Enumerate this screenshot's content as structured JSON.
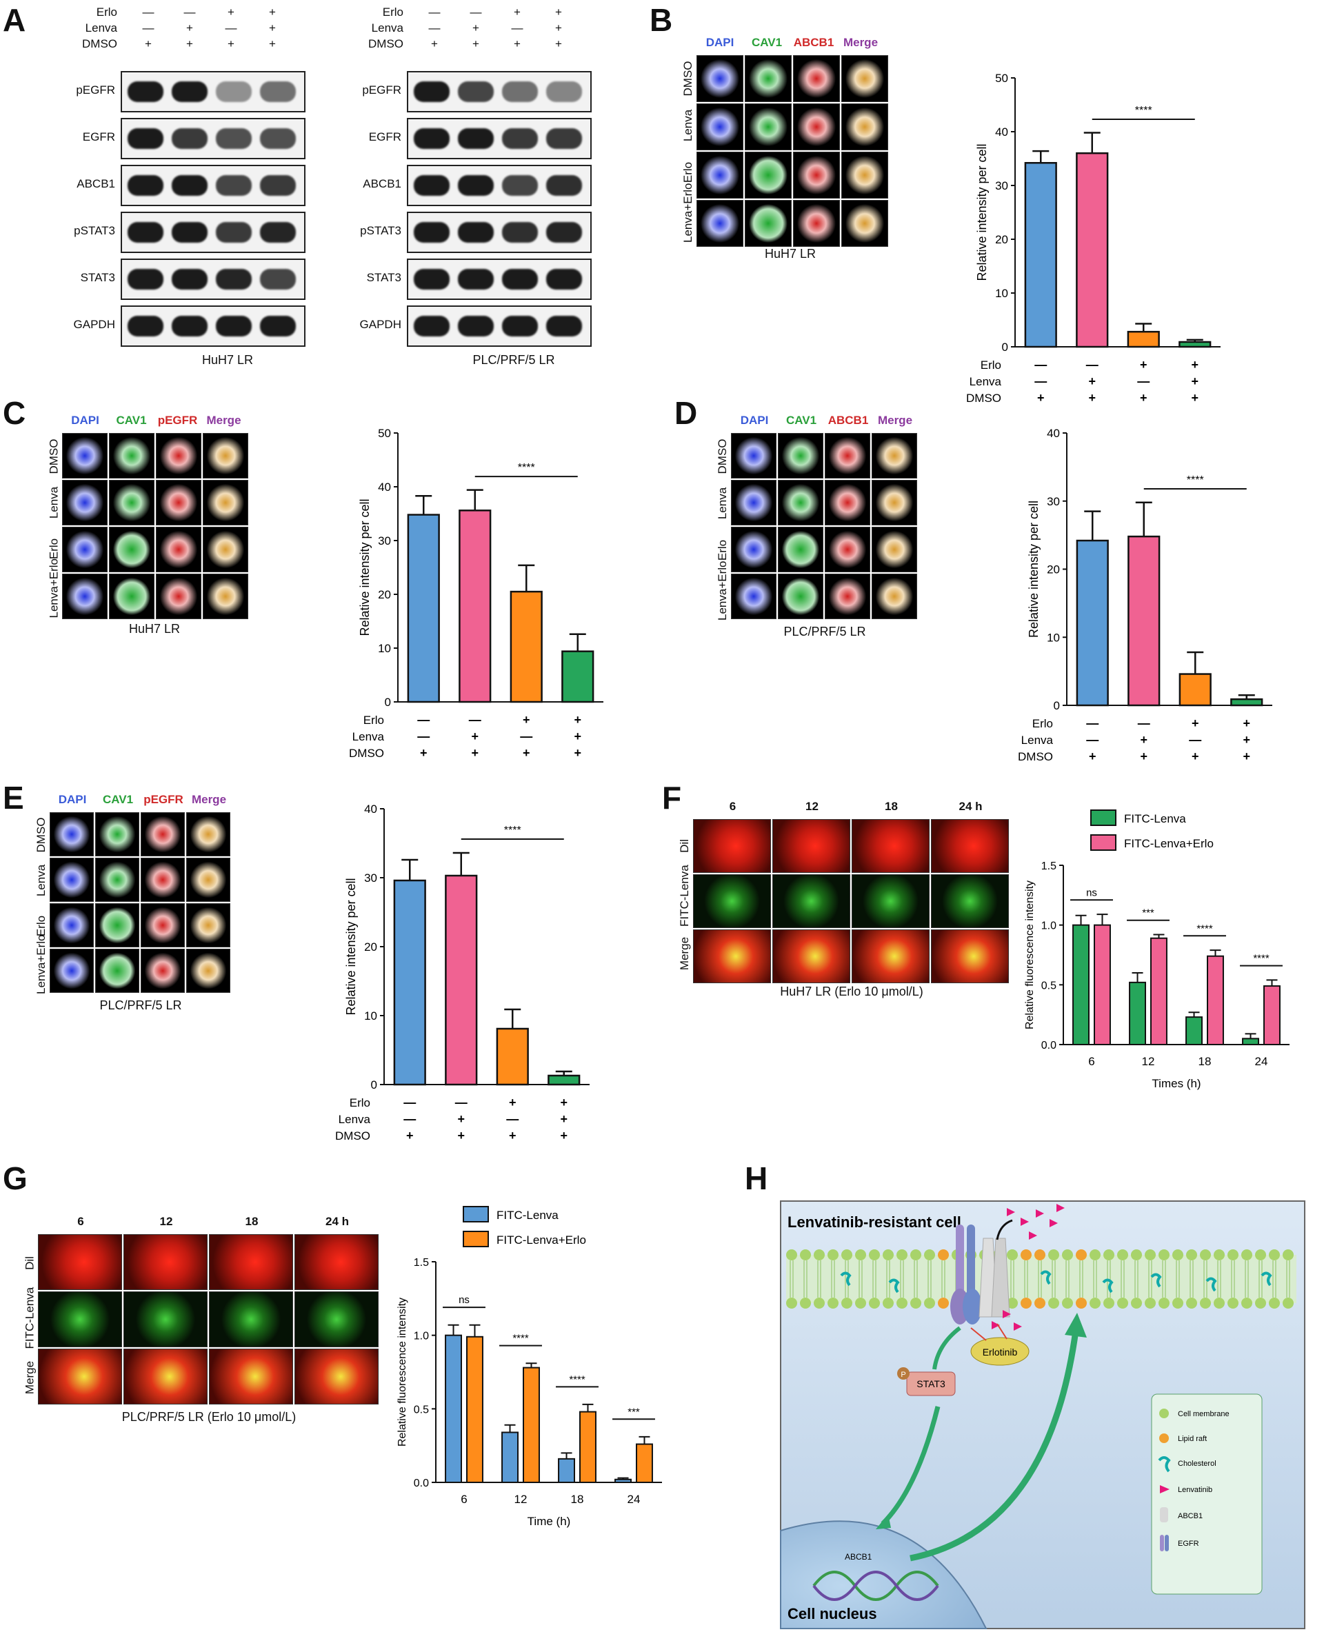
{
  "panel_letters": [
    "A",
    "B",
    "C",
    "D",
    "E",
    "F",
    "G",
    "H"
  ],
  "panelA": {
    "row_labels": [
      "Erlo",
      "Lenva",
      "DMSO"
    ],
    "signs_left": [
      [
        "—",
        "—",
        "+",
        "+"
      ],
      [
        "—",
        "+",
        "—",
        "+"
      ],
      [
        "+",
        "+",
        "+",
        "+"
      ]
    ],
    "blots": [
      "pEGFR",
      "EGFR",
      "ABCB1",
      "pSTAT3",
      "STAT3",
      "GAPDH"
    ],
    "left_caption": "HuH7 LR",
    "right_caption": "PLC/PRF/5 LR"
  },
  "if_channels": [
    "DAPI",
    "CAV1",
    "ABCB1",
    "Merge"
  ],
  "if_channels_pegfr": [
    "DAPI",
    "CAV1",
    "pEGFR",
    "Merge"
  ],
  "if_rows": [
    "DMSO",
    "Lenva",
    "Erlo",
    "Lenva+Erlo"
  ],
  "captions": {
    "B": "HuH7 LR",
    "C": "HuH7 LR",
    "D": "PLC/PRF/5 LR",
    "E": "PLC/PRF/5 LR",
    "F": "HuH7 LR (Erlo 10 μmol/L)",
    "G": "PLC/PRF/5 LR (Erlo 10 μmol/L)"
  },
  "time_cols": [
    "6",
    "12",
    "18",
    "24 h"
  ],
  "time_rows": [
    "Dil",
    "FITC-Lenva",
    "Merge"
  ],
  "bar_x_rows": {
    "labels": [
      "Erlo",
      "Lenva",
      "DMSO"
    ],
    "signs": [
      [
        "—",
        "—",
        "+",
        "+"
      ],
      [
        "—",
        "+",
        "—",
        "+"
      ],
      [
        "+",
        "+",
        "+",
        "+"
      ]
    ]
  },
  "colors": {
    "blue": "#5b9bd5",
    "pink": "#f06292",
    "orange": "#ff8c1a",
    "green": "#26a65b",
    "gblue": "#5b9bd5"
  },
  "chart_data": [
    {
      "id": "B",
      "type": "bar",
      "categories": [
        "DMSO",
        "Lenva",
        "Erlo",
        "Lenva+Erlo"
      ],
      "values": [
        34.2,
        36.0,
        2.8,
        0.9
      ],
      "errors": [
        2.2,
        3.8,
        1.5,
        0.4
      ],
      "ylabel": "Relative intensity per cell",
      "ylim": [
        0,
        50
      ],
      "yticks": [
        0,
        10,
        20,
        30,
        40,
        50
      ],
      "sig": "****"
    },
    {
      "id": "C",
      "type": "bar",
      "categories": [
        "DMSO",
        "Lenva",
        "Erlo",
        "Lenva+Erlo"
      ],
      "values": [
        34.8,
        35.6,
        20.5,
        9.4
      ],
      "errors": [
        3.5,
        3.8,
        4.9,
        3.2
      ],
      "ylabel": "Relative intensity per cell",
      "ylim": [
        0,
        50
      ],
      "yticks": [
        0,
        10,
        20,
        30,
        40,
        50
      ],
      "sig": "****"
    },
    {
      "id": "D",
      "type": "bar",
      "categories": [
        "DMSO",
        "Lenva",
        "Erlo",
        "Lenva+Erlo"
      ],
      "values": [
        24.2,
        24.8,
        4.6,
        0.9
      ],
      "errors": [
        4.3,
        5.0,
        3.2,
        0.6
      ],
      "ylabel": "Relative intensity per cell",
      "ylim": [
        0,
        40
      ],
      "yticks": [
        0,
        10,
        20,
        30,
        40
      ],
      "sig": "****"
    },
    {
      "id": "E",
      "type": "bar",
      "categories": [
        "DMSO",
        "Lenva",
        "Erlo",
        "Lenva+Erlo"
      ],
      "values": [
        29.6,
        30.3,
        8.1,
        1.3
      ],
      "errors": [
        3.0,
        3.3,
        2.8,
        0.6
      ],
      "ylabel": "Relative intensity per cell",
      "ylim": [
        0,
        40
      ],
      "yticks": [
        0,
        10,
        20,
        30,
        40
      ],
      "sig": "****"
    },
    {
      "id": "F",
      "type": "bar",
      "categories": [
        "6",
        "12",
        "18",
        "24"
      ],
      "series": [
        {
          "name": "FITC-Lenva",
          "values": [
            1.0,
            0.52,
            0.23,
            0.05
          ],
          "errors": [
            0.08,
            0.08,
            0.04,
            0.04
          ]
        },
        {
          "name": "FITC-Lenva+Erlo",
          "values": [
            1.0,
            0.89,
            0.74,
            0.49
          ],
          "errors": [
            0.09,
            0.03,
            0.05,
            0.05
          ]
        }
      ],
      "xlabel": "Times (h)",
      "ylabel": "Relative fluorescence intensity",
      "ylim": [
        0,
        1.5
      ],
      "yticks": [
        "0.0",
        "0.5",
        "1.0",
        "1.5"
      ],
      "sig": [
        "ns",
        "***",
        "****",
        "****"
      ]
    },
    {
      "id": "G",
      "type": "bar",
      "categories": [
        "6",
        "12",
        "18",
        "24"
      ],
      "series": [
        {
          "name": "FITC-Lenva",
          "values": [
            1.0,
            0.34,
            0.16,
            0.02
          ],
          "errors": [
            0.07,
            0.05,
            0.04,
            0.01
          ]
        },
        {
          "name": "FITC-Lenva+Erlo",
          "values": [
            0.99,
            0.78,
            0.48,
            0.26
          ],
          "errors": [
            0.08,
            0.03,
            0.05,
            0.05
          ]
        }
      ],
      "xlabel": "Time (h)",
      "ylabel": "Relative fluorescence intensity",
      "ylim": [
        0,
        1.5
      ],
      "yticks": [
        "0.0",
        "0.5",
        "1.0",
        "1.5"
      ],
      "sig": [
        "ns",
        "****",
        "****",
        "***"
      ]
    }
  ],
  "panelH": {
    "title": "Lenvatinib-resistant cell",
    "nucleus": "Cell nucleus",
    "stat3": "STAT3",
    "p": "P",
    "erlotinib": "Erlotinib",
    "abcb1": "ABCB1",
    "legend": [
      "Cell membrane",
      "Lipid raft",
      "Cholesterol",
      "Lenvatinib",
      "ABCB1",
      "EGFR"
    ]
  }
}
